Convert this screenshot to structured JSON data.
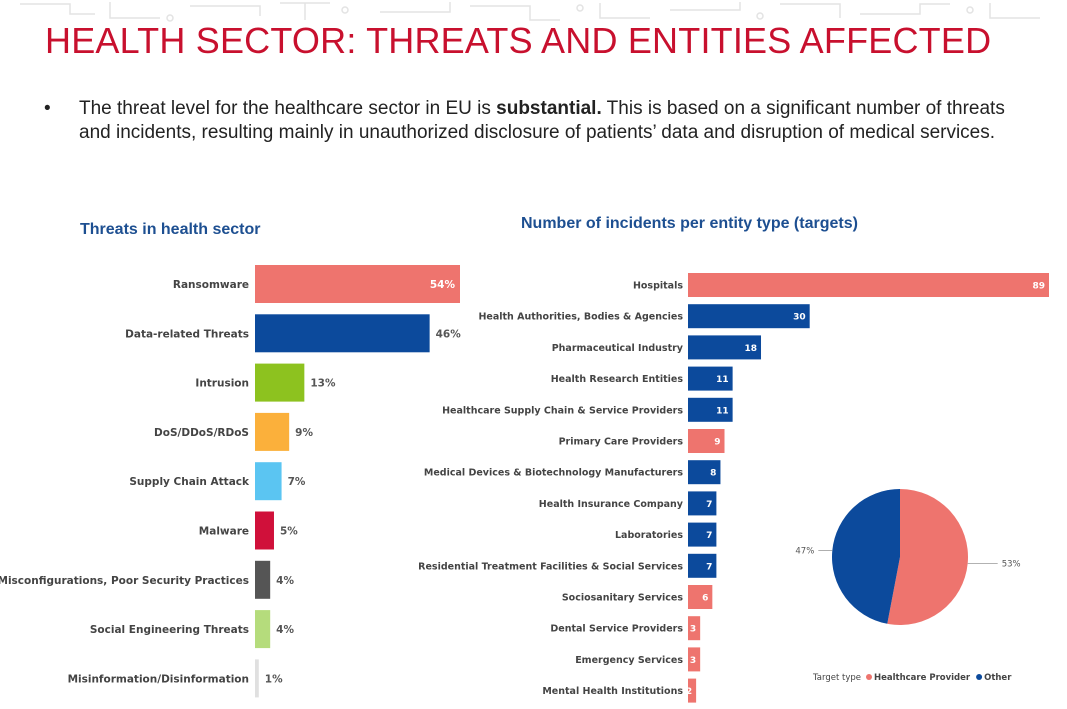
{
  "slide": {
    "title": "HEALTH SECTOR: THREATS AND ENTITIES AFFECTED",
    "bullet_char": "•",
    "bullet_text_before": "The threat level for the healthcare sector in EU is ",
    "bullet_bold": "substantial.",
    "bullet_text_after": " This is based on a significant number of threats and incidents, resulting mainly in unauthorized disclosure of patients’ data and disruption of medical services."
  },
  "colors": {
    "accent": "#c8102e",
    "title_blue": "#1d4f91",
    "healthcare_provider": "#ee746e",
    "other": "#0c4a9c"
  },
  "chart_data": [
    {
      "type": "bar",
      "orientation": "horizontal",
      "title": "Threats in health sector",
      "value_format": "percent",
      "categories": [
        "Ransomware",
        "Data-related Threats",
        "Intrusion",
        "DoS/DDoS/RDoS",
        "Supply Chain Attack",
        "Malware",
        "Errors, Misconfigurations, Poor Security Practices",
        "Social Engineering Threats",
        "Misinformation/Disinformation"
      ],
      "values": [
        54,
        46,
        13,
        9,
        7,
        5,
        4,
        4,
        1
      ],
      "labels": [
        "54%",
        "46%",
        "13%",
        "9%",
        "7%",
        "5%",
        "4%",
        "4%",
        "1%"
      ],
      "colors": [
        "#ee746e",
        "#0c4a9c",
        "#8dc21f",
        "#fbb03b",
        "#5bc5f2",
        "#d0103a",
        "#555555",
        "#b5dc7c",
        "#e0e0e0"
      ],
      "xlim": [
        0,
        54
      ]
    },
    {
      "type": "bar",
      "orientation": "horizontal",
      "title": "Number of incidents per entity type (targets)",
      "categories": [
        "Hospitals",
        "Health Authorities, Bodies & Agencies",
        "Pharmaceutical Industry",
        "Health Research Entities",
        "Healthcare Supply Chain & Service Providers",
        "Primary Care Providers",
        "Medical Devices & Biotechnology Manufacturers",
        "Health Insurance Company",
        "Laboratories",
        "Residential Treatment Facilities & Social Services",
        "Sociosanitary Services",
        "Dental Service Providers",
        "Emergency Services",
        "Mental Health Institutions"
      ],
      "values": [
        89,
        30,
        18,
        11,
        11,
        9,
        8,
        7,
        7,
        7,
        6,
        3,
        3,
        2
      ],
      "target_type": [
        "Healthcare Provider",
        "Other",
        "Other",
        "Other",
        "Other",
        "Healthcare Provider",
        "Other",
        "Other",
        "Other",
        "Other",
        "Healthcare Provider",
        "Healthcare Provider",
        "Healthcare Provider",
        "Healthcare Provider"
      ],
      "xlim": [
        0,
        89
      ]
    },
    {
      "type": "pie",
      "categories": [
        "Healthcare Provider",
        "Other"
      ],
      "values": [
        53,
        47
      ],
      "labels": [
        "53%",
        "47%"
      ],
      "colors": [
        "#ee746e",
        "#0c4a9c"
      ],
      "legend_title": "Target type",
      "legend": [
        "Healthcare Provider",
        "Other"
      ],
      "legend_position": "bottom"
    }
  ]
}
